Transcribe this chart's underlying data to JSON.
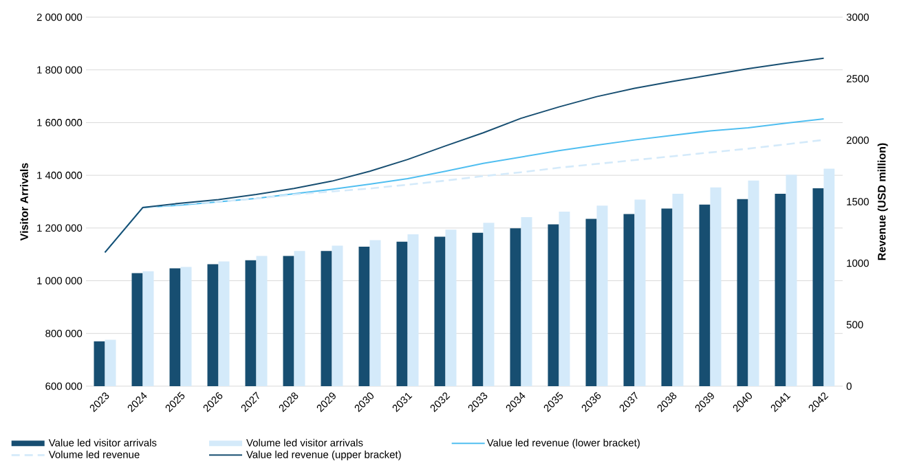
{
  "chart_data": {
    "type": "bar",
    "ylabel": "Visitor Arrivals",
    "y2label": "Revenue (USD million)",
    "categories": [
      "2023",
      "2024",
      "2025",
      "2026",
      "2027",
      "2028",
      "2029",
      "2030",
      "2031",
      "2032",
      "2033",
      "2034",
      "2035",
      "2036",
      "2037",
      "2038",
      "2039",
      "2040",
      "2041",
      "2042"
    ],
    "series": [
      {
        "name": "Value led visitor arrivals",
        "type": "bar",
        "color": "#174e71",
        "values": [
          770000,
          1029000,
          1047000,
          1063000,
          1078000,
          1094000,
          1113000,
          1129000,
          1148000,
          1167000,
          1182000,
          1199000,
          1214000,
          1235000,
          1253000,
          1274000,
          1289000,
          1310000,
          1330000,
          1351000
        ]
      },
      {
        "name": "Volume led visitor arrivals",
        "type": "bar",
        "color": "#d4eafa",
        "values": [
          776000,
          1036000,
          1052000,
          1073000,
          1094000,
          1113000,
          1133000,
          1154000,
          1176000,
          1194000,
          1220000,
          1241000,
          1262000,
          1285000,
          1308000,
          1330000,
          1354000,
          1380000,
          1402000,
          1425000
        ]
      },
      {
        "name": "Value led revenue (lower bracket)",
        "type": "line",
        "axis": "y2",
        "color": "#4fbef0",
        "line_style": "solid",
        "values": [
          1087,
          1452,
          1472,
          1498,
          1527,
          1564,
          1601,
          1643,
          1687,
          1747,
          1811,
          1863,
          1915,
          1960,
          2002,
          2039,
          2076,
          2101,
          2138,
          2173
        ]
      },
      {
        "name": "Volume led revenue",
        "type": "line",
        "axis": "y2",
        "color": "#d4eafa",
        "line_style": "dashed",
        "values": [
          1087,
          1452,
          1480,
          1500,
          1525,
          1558,
          1583,
          1607,
          1638,
          1671,
          1708,
          1739,
          1776,
          1807,
          1838,
          1869,
          1900,
          1931,
          1966,
          2002
        ]
      },
      {
        "name": "Value led revenue (upper bracket)",
        "type": "line",
        "axis": "y2",
        "color": "#174e71",
        "line_style": "solid",
        "values": [
          1087,
          1452,
          1488,
          1517,
          1558,
          1607,
          1667,
          1747,
          1843,
          1953,
          2060,
          2178,
          2270,
          2354,
          2422,
          2478,
          2529,
          2581,
          2625,
          2666
        ]
      }
    ],
    "ylim": [
      600000,
      2000000
    ],
    "yticks": [
      {
        "value": 600000,
        "label": "600 000"
      },
      {
        "value": 800000,
        "label": "800 000"
      },
      {
        "value": 1000000,
        "label": "1 000 000"
      },
      {
        "value": 1200000,
        "label": "1 200 000"
      },
      {
        "value": 1400000,
        "label": "1 400 000"
      },
      {
        "value": 1600000,
        "label": "1 600 000"
      },
      {
        "value": 1800000,
        "label": "1 800 000"
      },
      {
        "value": 2000000,
        "label": "2 000 000"
      }
    ],
    "y2lim": [
      0,
      3000
    ],
    "y2ticks": [
      0,
      500,
      1000,
      1500,
      2000,
      2500,
      3000
    ],
    "grid": "y",
    "legend": "bottom"
  }
}
